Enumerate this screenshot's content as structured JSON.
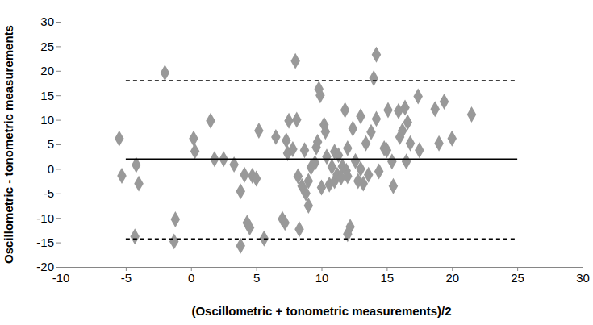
{
  "chart_data": {
    "type": "scatter",
    "x_label": "(Oscillometric + tonometric measurements)/2",
    "y_label": "Oscillometric - tonometric measurements",
    "xlim": [
      -10,
      30
    ],
    "ylim": [
      -20,
      30
    ],
    "xticks": [
      -10,
      -5,
      0,
      5,
      10,
      15,
      20,
      25,
      30
    ],
    "yticks": [
      -20,
      -15,
      -10,
      -5,
      0,
      5,
      10,
      15,
      20,
      25,
      30
    ],
    "grid": false,
    "series": [
      {
        "type": "scatter",
        "color": "#999999",
        "marker": "diamond",
        "x": [
          -5.5,
          -5.3,
          -4.2,
          -4,
          -4.3,
          -2,
          -1.2,
          -1.3,
          0.2,
          0.3,
          1.5,
          1.8,
          2.5,
          3.3,
          3.8,
          4.1,
          4.3,
          4.5,
          4.7,
          5,
          5.2,
          5.6,
          3.8,
          6.5,
          7,
          7.2,
          7.3,
          7.4,
          7.8,
          7.5,
          8,
          8.1,
          8.2,
          8.3,
          8.5,
          8.7,
          8.8,
          9,
          9,
          9.2,
          9.5,
          9.6,
          9.7,
          9.8,
          9.9,
          10,
          10.2,
          10.3,
          10.4,
          10.6,
          10.8,
          11,
          11,
          11.2,
          11.3,
          11.5,
          11.6,
          11.8,
          11.9,
          12,
          12,
          12,
          12.2,
          12.4,
          12.6,
          12.8,
          13,
          13,
          13.2,
          13.4,
          13.6,
          13.8,
          14,
          14.2,
          14.2,
          14.4,
          14.8,
          15,
          15.1,
          15.4,
          15.5,
          15.9,
          16,
          16.2,
          16.4,
          16.5,
          16.6,
          16.8,
          17.4,
          17.5,
          18.7,
          19,
          19.4,
          20,
          21.5
        ],
        "values": [
          6.2,
          -1.4,
          0.8,
          -3,
          -13.8,
          19.6,
          -10.3,
          -14.8,
          6.2,
          3.6,
          9.8,
          2,
          2,
          0.9,
          -4.6,
          -1.2,
          -11,
          -12,
          -1.4,
          -2,
          7.8,
          -14.2,
          -15.7,
          6.5,
          -10.2,
          -11,
          5.8,
          3.2,
          4,
          9.8,
          22,
          10,
          -1.5,
          -12.3,
          -3.5,
          3.8,
          -5,
          -7.5,
          -2.5,
          0.3,
          1.2,
          4.4,
          5.5,
          16.3,
          15,
          -3.8,
          9,
          7.6,
          2.5,
          -3.2,
          0.4,
          3.5,
          -2.5,
          -1.2,
          2.8,
          -1.8,
          0.5,
          12,
          -0.4,
          4.2,
          -1.5,
          -13.3,
          -11.8,
          8.2,
          1.6,
          -2.5,
          10.7,
          0,
          -3,
          5.2,
          -1.2,
          7.5,
          18.5,
          23.3,
          10.2,
          -0.5,
          4.2,
          3.8,
          12,
          1.5,
          -3.5,
          11.8,
          6.5,
          7.8,
          12.5,
          1.5,
          9.5,
          5.2,
          14.8,
          3.8,
          12.2,
          5.2,
          13.7,
          6.2,
          11.1
        ]
      },
      {
        "type": "line",
        "color": "#000000",
        "line_style": "solid",
        "x": [
          -5,
          25
        ],
        "values": [
          2,
          2
        ]
      },
      {
        "type": "line",
        "color": "#000000",
        "line_style": "dashed",
        "x": [
          -5,
          25
        ],
        "values": [
          18,
          18
        ]
      },
      {
        "type": "line",
        "color": "#000000",
        "line_style": "dashed",
        "x": [
          -5,
          25
        ],
        "values": [
          -14.3,
          -14.3
        ]
      }
    ]
  }
}
